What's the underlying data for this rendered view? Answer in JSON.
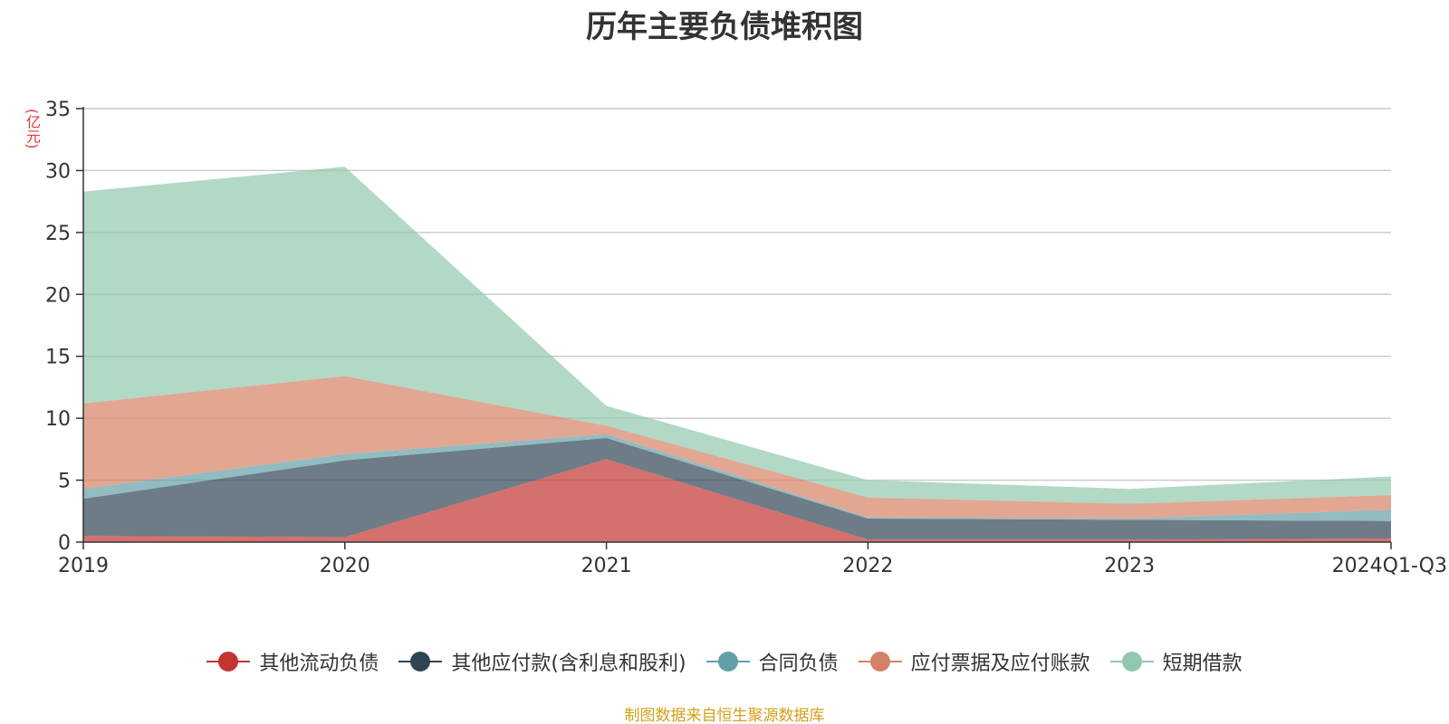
{
  "title": "历年主要负债堆积图",
  "unit_label": "(亿元)",
  "source_note": "制图数据来自恒生聚源数据库",
  "chart_data": {
    "type": "area",
    "stacked": true,
    "categories": [
      "2019",
      "2020",
      "2021",
      "2022",
      "2023",
      "2024Q1-Q3"
    ],
    "ylim": [
      0,
      35
    ],
    "yticks": [
      0,
      5,
      10,
      15,
      20,
      25,
      30,
      35
    ],
    "grid": true,
    "legend_position": "bottom",
    "series": [
      {
        "name": "其他流动负债",
        "color": "#c23531",
        "values": [
          0.5,
          0.4,
          6.7,
          0.2,
          0.2,
          0.3
        ]
      },
      {
        "name": "其他应付款(含利息和股利)",
        "color": "#2f4554",
        "values": [
          3.0,
          6.2,
          1.7,
          1.7,
          1.6,
          1.4
        ]
      },
      {
        "name": "合同负债",
        "color": "#61a0a8",
        "values": [
          0.8,
          0.5,
          0.3,
          0.1,
          0.1,
          0.9
        ]
      },
      {
        "name": "应付票据及应付账款",
        "color": "#d48265",
        "values": [
          6.9,
          6.3,
          0.7,
          1.6,
          1.2,
          1.2
        ]
      },
      {
        "name": "短期借款",
        "color": "#91c7ae",
        "values": [
          17.1,
          16.9,
          1.6,
          1.4,
          1.2,
          1.5
        ]
      }
    ]
  }
}
